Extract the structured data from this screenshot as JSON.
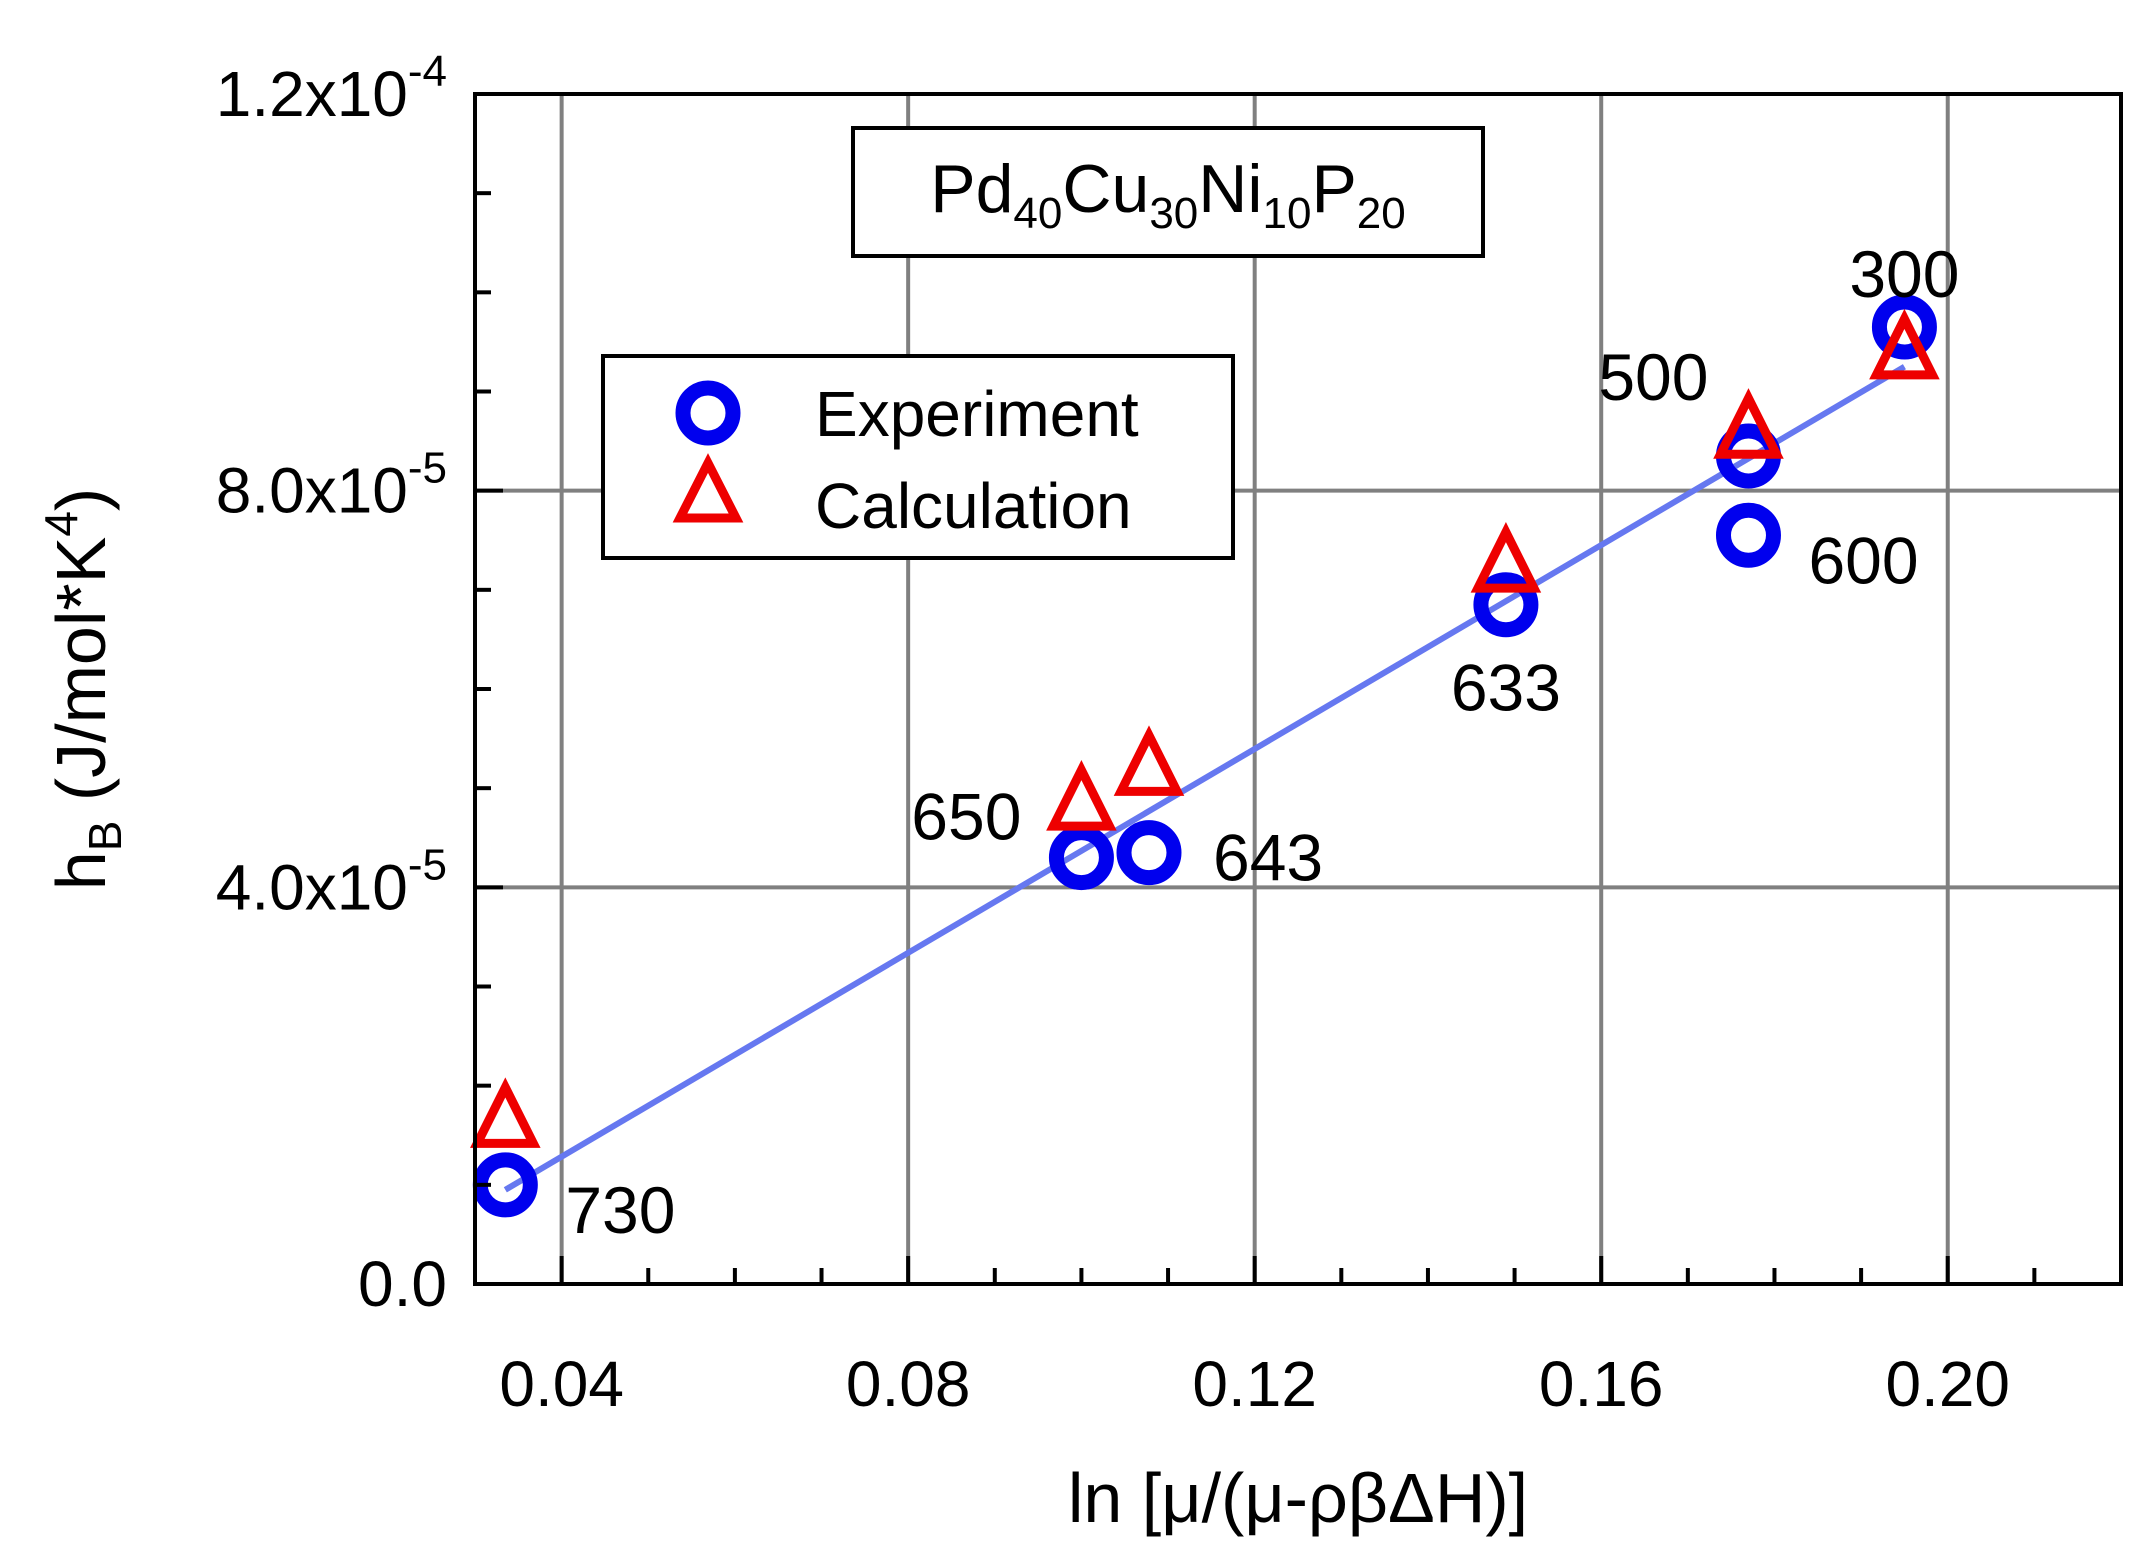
{
  "chart_data": {
    "type": "scatter",
    "title": "",
    "composition_box": {
      "parts": [
        {
          "text": "Pd",
          "sub": "40"
        },
        {
          "text": "Cu",
          "sub": "30"
        },
        {
          "text": "Ni",
          "sub": "10"
        },
        {
          "text": "P",
          "sub": "20"
        }
      ]
    },
    "xlabel": "ln [μ/(μ-ρβΔH)]",
    "ylabel": {
      "main": "h",
      "sub": "B",
      "paren_open": " (J/mol*K",
      "sup": "4",
      "paren_close": ")"
    },
    "xlim": [
      0.03,
      0.22
    ],
    "ylim": [
      0,
      0.00012
    ],
    "x_ticks": [
      {
        "value": 0.04,
        "label": "0.04"
      },
      {
        "value": 0.08,
        "label": "0.08"
      },
      {
        "value": 0.12,
        "label": "0.12"
      },
      {
        "value": 0.16,
        "label": "0.16"
      },
      {
        "value": 0.2,
        "label": "0.20"
      }
    ],
    "y_ticks": [
      {
        "value": 0,
        "mantissa": "0.0",
        "exponent": ""
      },
      {
        "value": 4e-05,
        "mantissa": "4.0x10",
        "exponent": "-5"
      },
      {
        "value": 8e-05,
        "mantissa": "8.0x10",
        "exponent": "-5"
      },
      {
        "value": 0.00012,
        "mantissa": "1.2x10",
        "exponent": "-4"
      }
    ],
    "x_minor_step": 0.01,
    "y_minor_step": 1e-05,
    "grid": true,
    "legend_position": "upper-left",
    "series": [
      {
        "name": "Experiment",
        "marker": "circle",
        "color": "#0000ee",
        "points": [
          {
            "x": 0.0335,
            "y": 1e-05
          },
          {
            "x": 0.1,
            "y": 4.3e-05
          },
          {
            "x": 0.1078,
            "y": 4.35e-05
          },
          {
            "x": 0.149,
            "y": 6.85e-05
          },
          {
            "x": 0.177,
            "y": 7.55e-05
          },
          {
            "x": 0.177,
            "y": 8.35e-05
          },
          {
            "x": 0.195,
            "y": 9.65e-05
          }
        ]
      },
      {
        "name": "Calculation",
        "marker": "triangle",
        "color": "#ee0000",
        "points": [
          {
            "x": 0.0335,
            "y": 1.7e-05
          },
          {
            "x": 0.1,
            "y": 4.9e-05
          },
          {
            "x": 0.1078,
            "y": 5.25e-05
          },
          {
            "x": 0.149,
            "y": 7.3e-05
          },
          {
            "x": 0.177,
            "y": 8.65e-05
          },
          {
            "x": 0.195,
            "y": 9.45e-05
          }
        ]
      }
    ],
    "fit_line": {
      "color": "#6678f0",
      "points": [
        {
          "x": 0.0335,
          "y": 9.5e-06
        },
        {
          "x": 0.195,
          "y": 9.25e-05
        }
      ]
    },
    "annotations": [
      {
        "text": "730",
        "x": 0.0335,
        "y": 1e-05,
        "anchor": "right-below"
      },
      {
        "text": "650",
        "x": 0.1,
        "y": 4.3e-05,
        "anchor": "left-above"
      },
      {
        "text": "643",
        "x": 0.1078,
        "y": 4.35e-05,
        "anchor": "right"
      },
      {
        "text": "633",
        "x": 0.149,
        "y": 6.85e-05,
        "anchor": "below"
      },
      {
        "text": "600",
        "x": 0.177,
        "y": 7.55e-05,
        "anchor": "right-below"
      },
      {
        "text": "500",
        "x": 0.177,
        "y": 8.65e-05,
        "anchor": "left"
      },
      {
        "text": "300",
        "x": 0.195,
        "y": 9.65e-05,
        "anchor": "above"
      }
    ]
  }
}
